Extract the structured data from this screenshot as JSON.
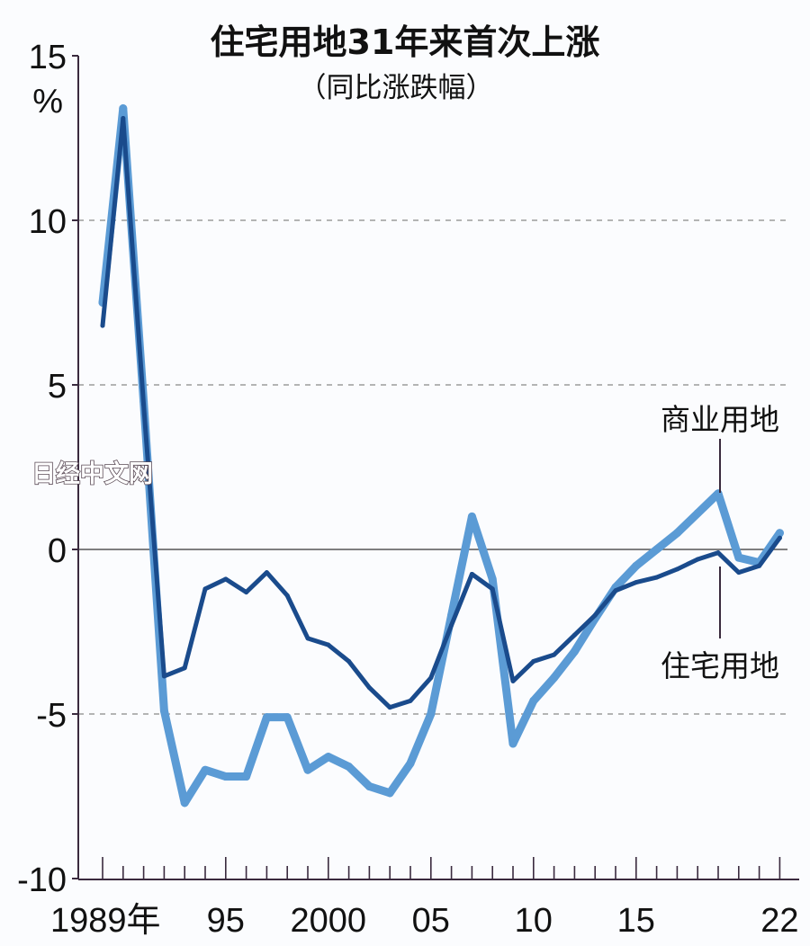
{
  "chart_data": {
    "type": "line",
    "title": "住宅用地31年来首次上涨",
    "subtitle": "（同比涨跌幅）",
    "ylabel": "%",
    "ylim": [
      -10,
      15
    ],
    "yticks": [
      "15",
      "10",
      "5",
      "0",
      "-5",
      "-10"
    ],
    "ytick_values": [
      15,
      10,
      5,
      0,
      -5,
      -10
    ],
    "xlim": [
      1989,
      2022
    ],
    "xticks": [
      {
        "year": 1989,
        "label": "1989年"
      },
      {
        "year": 1995,
        "label": "95"
      },
      {
        "year": 2000,
        "label": "2000"
      },
      {
        "year": 2005,
        "label": "05"
      },
      {
        "year": 2010,
        "label": "10"
      },
      {
        "year": 2015,
        "label": "15"
      },
      {
        "year": 2022,
        "label": "22"
      }
    ],
    "grid": "dashed horizontal at 10, 5, -5; solid at 0",
    "x": [
      1989,
      1990,
      1991,
      1992,
      1993,
      1994,
      1995,
      1996,
      1997,
      1998,
      1999,
      2000,
      2001,
      2002,
      2003,
      2004,
      2005,
      2006,
      2007,
      2008,
      2009,
      2010,
      2011,
      2012,
      2013,
      2014,
      2015,
      2016,
      2017,
      2018,
      2019,
      2020,
      2021,
      2022
    ],
    "series": [
      {
        "name": "商业用地",
        "color": "#5b9bd5",
        "values": [
          7.5,
          13.4,
          4.5,
          -4.9,
          -7.7,
          -6.7,
          -6.9,
          -6.9,
          -5.1,
          -5.1,
          -6.7,
          -6.3,
          -6.6,
          -7.2,
          -7.4,
          -6.5,
          -5.0,
          -2.0,
          1.0,
          -0.9,
          -5.9,
          -4.6,
          -3.9,
          -3.1,
          -2.1,
          -1.15,
          -0.5,
          0.0,
          0.5,
          1.1,
          1.7,
          -0.25,
          -0.4,
          0.5
        ]
      },
      {
        "name": "住宅用地",
        "color": "#1a4b8c",
        "values": [
          6.8,
          13.1,
          4.4,
          -3.85,
          -3.6,
          -1.2,
          -0.9,
          -1.3,
          -0.7,
          -1.4,
          -2.7,
          -2.9,
          -3.4,
          -4.2,
          -4.8,
          -4.6,
          -3.9,
          -2.3,
          -0.75,
          -1.2,
          -4.0,
          -3.4,
          -3.2,
          -2.6,
          -2.0,
          -1.25,
          -1.0,
          -0.85,
          -0.6,
          -0.3,
          -0.1,
          -0.7,
          -0.5,
          0.35
        ]
      }
    ]
  },
  "watermark": "日经中文网"
}
